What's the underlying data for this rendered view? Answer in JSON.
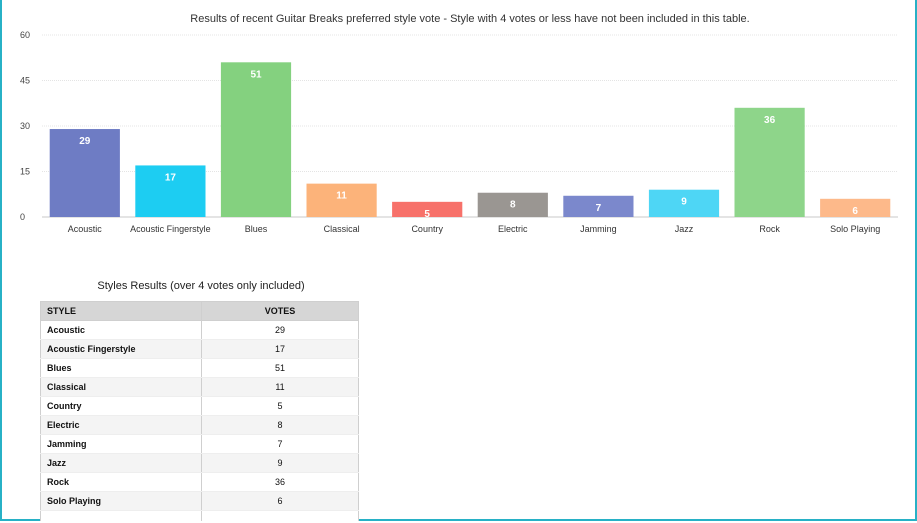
{
  "chart_data": {
    "type": "bar",
    "title": "Results of recent Guitar Breaks preferred style vote - Style with 4 votes or less have not been included in this table.",
    "categories": [
      "Acoustic",
      "Acoustic Fingerstyle",
      "Blues",
      "Classical",
      "Country",
      "Electric",
      "Jamming",
      "Jazz",
      "Rock",
      "Solo Playing"
    ],
    "values": [
      29,
      17,
      51,
      11,
      5,
      8,
      7,
      9,
      36,
      6
    ],
    "colors": [
      "#6e7cc4",
      "#1dcdf2",
      "#84d17f",
      "#fcb37a",
      "#f7716a",
      "#9a9692",
      "#7b88cc",
      "#4ed6f5",
      "#8ed58a",
      "#fdb98a"
    ],
    "ylim": [
      0,
      60
    ],
    "yticks": [
      0,
      15,
      30,
      45,
      60
    ],
    "grid": true,
    "legend": "none",
    "xlabel": "",
    "ylabel": ""
  },
  "table": {
    "title": "Styles Results (over 4 votes only included)",
    "headers": [
      "STYLE",
      "VOTES"
    ],
    "rows": [
      [
        "Acoustic",
        "29"
      ],
      [
        "Acoustic Fingerstyle",
        "17"
      ],
      [
        "Blues",
        "51"
      ],
      [
        "Classical",
        "11"
      ],
      [
        "Country",
        "5"
      ],
      [
        "Electric",
        "8"
      ],
      [
        "Jamming",
        "7"
      ],
      [
        "Jazz",
        "9"
      ],
      [
        "Rock",
        "36"
      ],
      [
        "Solo Playing",
        "6"
      ]
    ]
  }
}
